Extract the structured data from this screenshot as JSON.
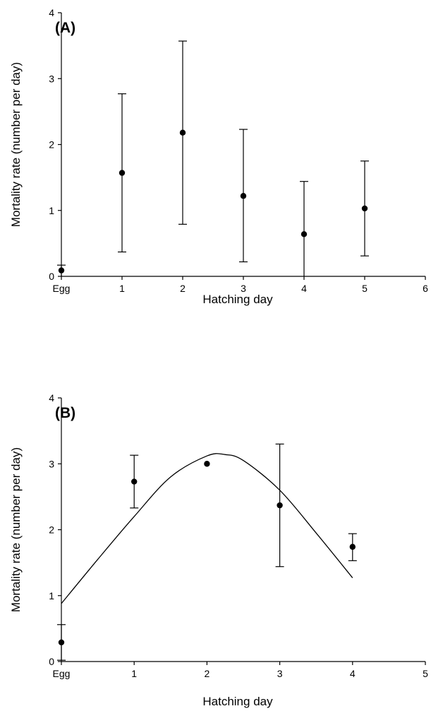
{
  "chart_data": [
    {
      "type": "scatter",
      "panel_label": "(A)",
      "xlabel": "Hatching day",
      "ylabel": "Mortality rate (number per day)",
      "xlim": [
        0,
        6
      ],
      "ylim": [
        0,
        4
      ],
      "x_ticks": [
        "Egg",
        "1",
        "2",
        "3",
        "4",
        "5",
        "6"
      ],
      "y_ticks": [
        "0",
        "1",
        "2",
        "3",
        "4"
      ],
      "series": [
        {
          "points": [
            {
              "x": "Egg",
              "y": 0.09,
              "err_low": 0.0,
              "err_high": 0.17
            },
            {
              "x": 1,
              "y": 1.57,
              "err_low": 0.37,
              "err_high": 2.77
            },
            {
              "x": 2,
              "y": 2.18,
              "err_low": 0.79,
              "err_high": 3.57
            },
            {
              "x": 3,
              "y": 1.22,
              "err_low": 0.22,
              "err_high": 2.23
            },
            {
              "x": 4,
              "y": 0.64,
              "err_low": 0.0,
              "err_high": 1.44
            },
            {
              "x": 5,
              "y": 1.03,
              "err_low": 0.31,
              "err_high": 1.75
            }
          ]
        }
      ]
    },
    {
      "type": "scatter",
      "panel_label": "(B)",
      "xlabel": "Hatching day",
      "ylabel": "Mortality rate (number per day)",
      "xlim": [
        0,
        5
      ],
      "ylim": [
        0,
        4
      ],
      "x_ticks": [
        "Egg",
        "1",
        "2",
        "3",
        "4",
        "5"
      ],
      "y_ticks": [
        "0",
        "1",
        "2",
        "3",
        "4"
      ],
      "series": [
        {
          "points": [
            {
              "x": "Egg",
              "y": 0.29,
              "err_low": 0.02,
              "err_high": 0.56
            },
            {
              "x": 1,
              "y": 2.73,
              "err_low": 2.33,
              "err_high": 3.13
            },
            {
              "x": 2,
              "y": 3.0,
              "err_low": 3.0,
              "err_high": 3.0
            },
            {
              "x": 3,
              "y": 2.37,
              "err_low": 1.44,
              "err_high": 3.3
            },
            {
              "x": 4,
              "y": 1.74,
              "err_low": 1.53,
              "err_high": 1.94
            }
          ]
        }
      ],
      "fitted_curve": {
        "x": [
          0,
          0.5,
          1,
          1.5,
          2,
          2.25,
          2.5,
          3,
          3.5,
          4
        ],
        "y": [
          0.88,
          1.55,
          2.2,
          2.8,
          3.12,
          3.14,
          3.05,
          2.6,
          1.95,
          1.27
        ]
      }
    }
  ]
}
